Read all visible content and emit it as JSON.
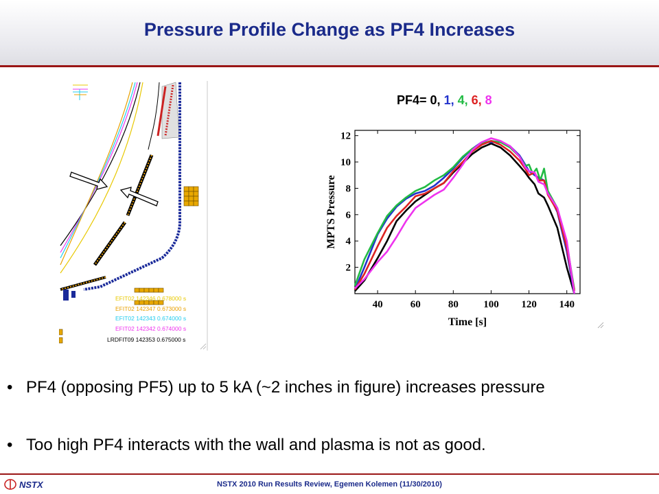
{
  "slide": {
    "title": "Pressure Profile Change as PF4 Increases",
    "pf_label": {
      "prefix": "PF4=",
      "values": [
        {
          "text": "0,",
          "color": "#000000"
        },
        {
          "text": "1,",
          "color": "#2233cc"
        },
        {
          "text": "4,",
          "color": "#22bb44"
        },
        {
          "text": "6,",
          "color": "#dd2222"
        },
        {
          "text": "8",
          "color": "#ee33ee"
        }
      ]
    },
    "bullets": [
      "PF4 (opposing PF5) up to 5 kA (~2 inches in figure) increases pressure",
      "Too high PF4 interacts with the wall and plasma is not as good."
    ],
    "bullet_symbol": "•"
  },
  "equilibrium_figure": {
    "legend": [
      {
        "code": "EFIT02",
        "shot": "142346",
        "time": "0.678000",
        "unit": "s",
        "color": "#e8c800"
      },
      {
        "code": "EFIT02",
        "shot": "142347",
        "time": "0.673000",
        "unit": "s",
        "color": "#e8a000"
      },
      {
        "code": "EFIT02",
        "shot": "142343",
        "time": "0.674000",
        "unit": "s",
        "color": "#22ccee"
      },
      {
        "code": "EFIT02",
        "shot": "142342",
        "time": "0.674000",
        "unit": "s",
        "color": "#ee33ee"
      },
      {
        "code": "LRDFIT09",
        "shot": "142353",
        "time": "0.675000",
        "unit": "s",
        "color": "#000000"
      }
    ]
  },
  "chart_data": {
    "type": "line",
    "xlabel": "Time [s]",
    "ylabel": "MPTS Pressure",
    "xlim": [
      28,
      147
    ],
    "ylim": [
      0,
      12.4
    ],
    "xticks": [
      40,
      60,
      80,
      100,
      120,
      140
    ],
    "yticks": [
      2,
      4,
      6,
      8,
      10,
      12
    ],
    "grid": false,
    "series": [
      {
        "name": "0",
        "color": "#000000",
        "x": [
          28,
          33,
          40,
          45,
          50,
          55,
          60,
          65,
          70,
          75,
          80,
          85,
          90,
          95,
          100,
          105,
          110,
          115,
          118,
          120,
          123,
          125,
          128,
          130,
          135,
          140,
          144
        ],
        "y": [
          0.2,
          1.0,
          2.7,
          4.0,
          5.5,
          6.3,
          7.0,
          7.5,
          8.0,
          8.4,
          9.2,
          9.9,
          10.6,
          11.1,
          11.4,
          11.1,
          10.5,
          9.7,
          9.2,
          8.8,
          8.3,
          7.6,
          7.3,
          6.7,
          5.0,
          2.0,
          0.0
        ]
      },
      {
        "name": "1",
        "color": "#2233cc",
        "x": [
          28,
          33,
          40,
          45,
          50,
          55,
          60,
          65,
          70,
          75,
          80,
          85,
          90,
          95,
          100,
          105,
          110,
          115,
          118,
          120,
          123,
          125,
          128,
          130,
          135,
          140,
          144
        ],
        "y": [
          0.3,
          2.0,
          4.5,
          5.7,
          6.6,
          7.2,
          7.6,
          7.8,
          8.2,
          8.8,
          9.5,
          10.3,
          11.0,
          11.5,
          11.5,
          11.5,
          11.2,
          10.5,
          9.8,
          9.3,
          9.0,
          8.8,
          8.6,
          7.7,
          6.2,
          3.2,
          0.0
        ]
      },
      {
        "name": "4",
        "color": "#22bb44",
        "x": [
          28,
          33,
          40,
          45,
          50,
          55,
          60,
          65,
          70,
          75,
          80,
          85,
          90,
          95,
          100,
          105,
          110,
          115,
          118,
          120,
          122,
          124,
          126,
          128,
          130,
          135,
          140,
          144
        ],
        "y": [
          0.6,
          2.6,
          4.6,
          5.9,
          6.7,
          7.3,
          7.8,
          8.1,
          8.6,
          9.0,
          9.6,
          10.4,
          11.0,
          11.4,
          11.6,
          11.5,
          11.1,
          10.4,
          9.7,
          9.8,
          9.1,
          9.5,
          8.6,
          9.5,
          7.8,
          6.5,
          3.8,
          0.3
        ]
      },
      {
        "name": "6",
        "color": "#dd2222",
        "x": [
          28,
          33,
          40,
          45,
          50,
          55,
          60,
          65,
          70,
          75,
          80,
          85,
          90,
          95,
          100,
          105,
          110,
          115,
          118,
          120,
          123,
          125,
          128,
          130,
          135,
          140,
          144
        ],
        "y": [
          0.3,
          1.5,
          3.6,
          5.0,
          5.9,
          6.6,
          7.4,
          7.6,
          8.0,
          8.4,
          9.3,
          10.0,
          10.8,
          11.3,
          11.6,
          11.3,
          10.8,
          10.1,
          9.5,
          9.0,
          9.2,
          8.6,
          8.6,
          7.5,
          6.3,
          3.5,
          0.2
        ]
      },
      {
        "name": "8",
        "color": "#ee33ee",
        "x": [
          28,
          33,
          40,
          45,
          50,
          55,
          60,
          65,
          70,
          75,
          80,
          85,
          90,
          95,
          100,
          105,
          110,
          115,
          118,
          120,
          123,
          125,
          128,
          130,
          135,
          140,
          144
        ],
        "y": [
          0.4,
          1.1,
          2.4,
          3.2,
          4.3,
          5.5,
          6.5,
          7.0,
          7.5,
          7.9,
          8.8,
          9.8,
          10.9,
          11.5,
          11.8,
          11.6,
          11.2,
          10.4,
          9.6,
          9.3,
          9.2,
          8.5,
          8.3,
          7.6,
          6.5,
          4.0,
          0.0
        ]
      }
    ]
  },
  "footer": {
    "brand": "NSTX",
    "text": "NSTX 2010 Run Results Review,  Egemen Kolemen (11/30/2010)"
  }
}
